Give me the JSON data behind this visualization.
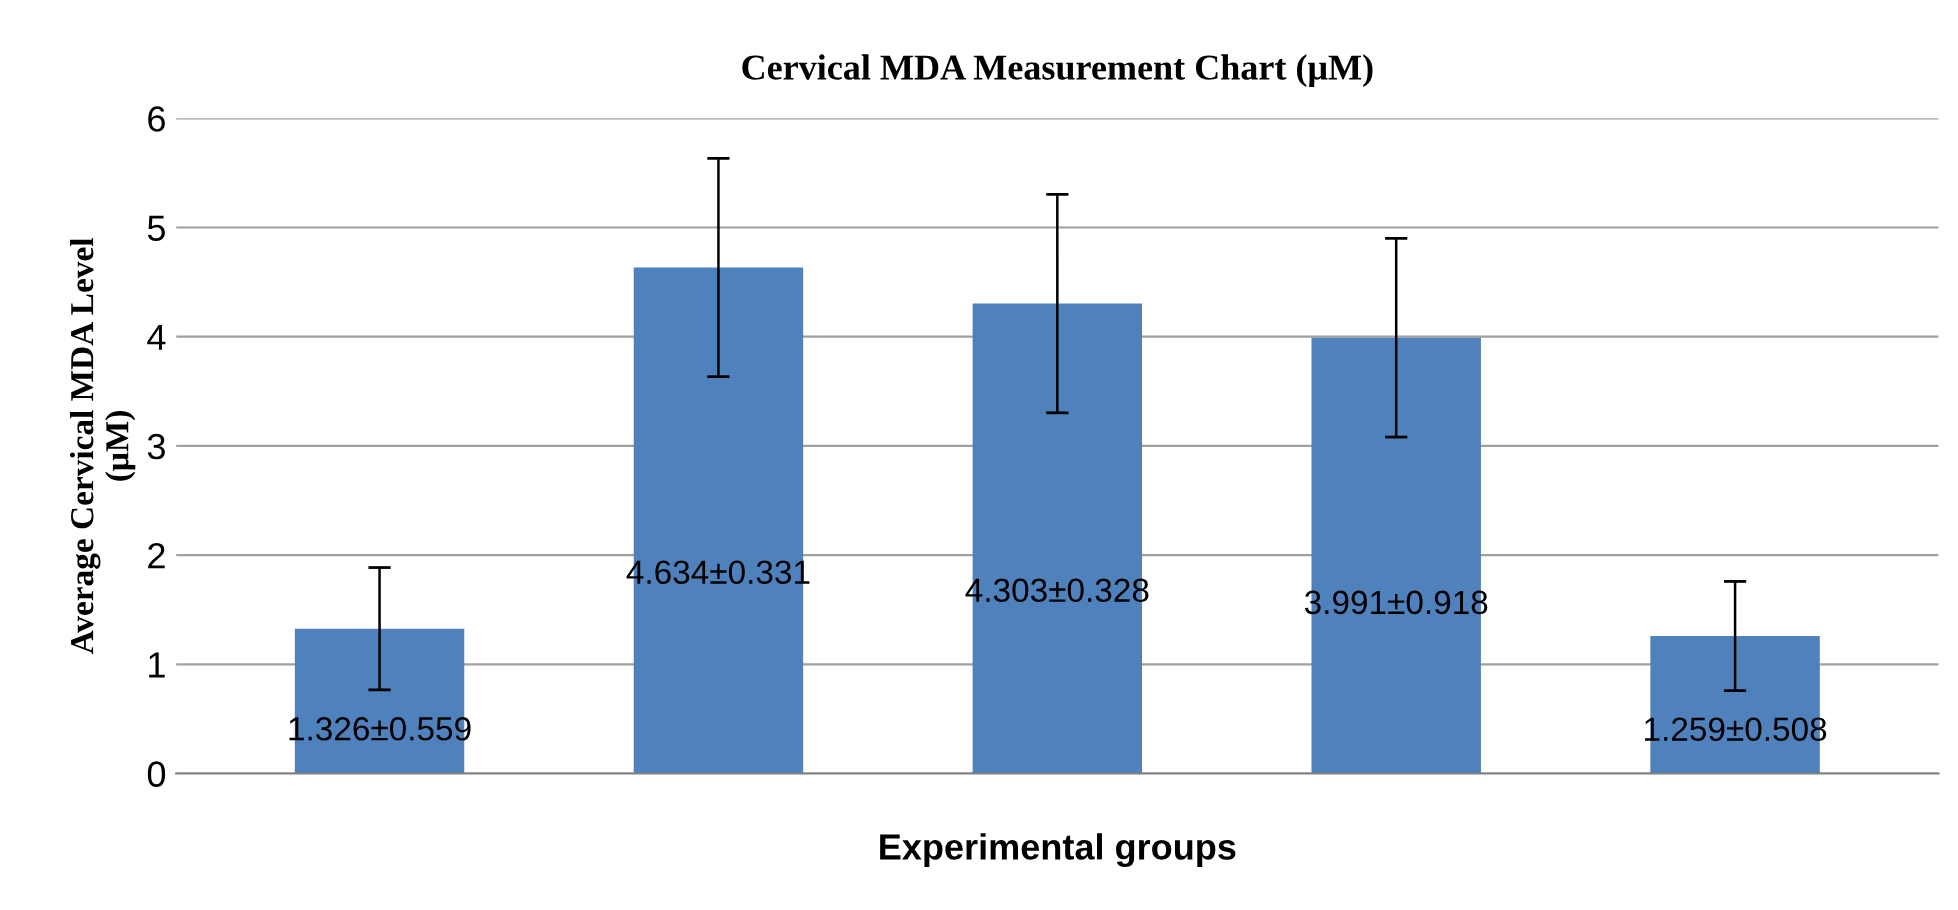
{
  "chart_data": {
    "type": "bar",
    "title": "Cervical MDA Measurement Chart (μM)",
    "xlabel": "Experimental groups",
    "ylabel": "Average Cervical MDA Level\n(μM)",
    "categories": [
      null,
      null,
      null,
      null,
      null
    ],
    "values": [
      1.326,
      4.634,
      4.303,
      3.991,
      1.259
    ],
    "errors": [
      0.56,
      1.0,
      1.0,
      0.91,
      0.5
    ],
    "value_labels": [
      "1.326±0.559",
      "4.634±0.331",
      "4.303±0.328",
      "3.991±0.918",
      "1.259±0.508"
    ],
    "color": "#4f81bd",
    "ylim": [
      0,
      6
    ],
    "yticks": [
      0,
      1,
      2,
      3,
      4,
      5,
      6
    ],
    "grid": "y",
    "legend": false
  }
}
